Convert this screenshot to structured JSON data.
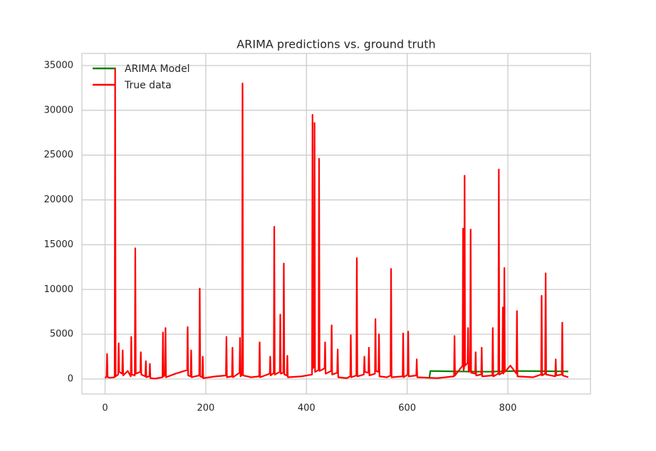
{
  "chart_data": {
    "type": "line",
    "title": "ARIMA predictions vs. ground truth",
    "xlim": [
      -46,
      964
    ],
    "ylim": [
      -1670,
      36350
    ],
    "xticks": [
      0,
      200,
      400,
      600,
      800
    ],
    "yticks": [
      0,
      5000,
      10000,
      15000,
      20000,
      25000,
      30000,
      35000
    ],
    "grid": true,
    "legend": "upper-left",
    "series": [
      {
        "name": "ARIMA Model",
        "color": "#008000",
        "x": [
          644,
          646,
          700,
          760,
          820,
          920
        ],
        "values": [
          100,
          900,
          850,
          820,
          900,
          850
        ]
      },
      {
        "name": "True data",
        "color": "#ff0000",
        "x": [
          0,
          3,
          4,
          5,
          10,
          19,
          20,
          21,
          26,
          27,
          28,
          34,
          35,
          36,
          45,
          51,
          52,
          53,
          59,
          60,
          61,
          70,
          71,
          72,
          80,
          81,
          82,
          88,
          89,
          90,
          100,
          114,
          115,
          116,
          119,
          120,
          121,
          140,
          163,
          164,
          165,
          170,
          171,
          172,
          187,
          188,
          189,
          193,
          194,
          195,
          220,
          240,
          241,
          242,
          252,
          253,
          254,
          267,
          268,
          269,
          272,
          273,
          274,
          290,
          306,
          307,
          308,
          327,
          328,
          329,
          335,
          336,
          337,
          347,
          348,
          349,
          354,
          355,
          356,
          361,
          362,
          363,
          390,
          411,
          412,
          413,
          415,
          416,
          417,
          424,
          425,
          426,
          436,
          437,
          438,
          449,
          450,
          451,
          461,
          462,
          463,
          480,
          487,
          488,
          489,
          499,
          500,
          501,
          514,
          515,
          516,
          523,
          524,
          525,
          536,
          537,
          538,
          543,
          544,
          545,
          560,
          567,
          568,
          569,
          591,
          592,
          593,
          601,
          602,
          603,
          618,
          619,
          620,
          660,
          693,
          694,
          695,
          710,
          711,
          712,
          713,
          714,
          715,
          720,
          721,
          722,
          725,
          726,
          727,
          735,
          736,
          737,
          747,
          748,
          749,
          769,
          770,
          771,
          781,
          782,
          783,
          789,
          790,
          791,
          792,
          793,
          794,
          805,
          817,
          818,
          819,
          850,
          866,
          867,
          868,
          874,
          875,
          876,
          894,
          895,
          896,
          907,
          908,
          909,
          920
        ],
        "values": [
          100,
          300,
          2800,
          200,
          150,
          200,
          34700,
          300,
          500,
          4000,
          800,
          600,
          3200,
          400,
          900,
          300,
          4700,
          500,
          400,
          14600,
          600,
          800,
          3000,
          500,
          300,
          2000,
          200,
          300,
          1700,
          100,
          50,
          200,
          5200,
          300,
          400,
          5700,
          200,
          600,
          1000,
          5800,
          400,
          300,
          3200,
          200,
          400,
          10100,
          300,
          200,
          2500,
          100,
          300,
          400,
          4700,
          200,
          300,
          3500,
          200,
          700,
          4600,
          300,
          500,
          33000,
          400,
          200,
          300,
          4100,
          200,
          600,
          2500,
          400,
          700,
          17000,
          500,
          800,
          7200,
          600,
          700,
          12900,
          500,
          400,
          2600,
          200,
          300,
          500,
          29500,
          1200,
          1500,
          28600,
          800,
          1000,
          24600,
          900,
          1200,
          4100,
          600,
          900,
          6000,
          500,
          700,
          3300,
          200,
          100,
          300,
          4900,
          200,
          400,
          13500,
          300,
          500,
          2500,
          800,
          700,
          3500,
          400,
          600,
          6700,
          900,
          800,
          5000,
          300,
          200,
          400,
          12300,
          200,
          300,
          5100,
          200,
          500,
          5300,
          300,
          400,
          2200,
          200,
          100,
          300,
          4800,
          400,
          1500,
          16800,
          1000,
          1200,
          22700,
          1500,
          1800,
          5700,
          800,
          900,
          16700,
          700,
          600,
          3000,
          400,
          500,
          3500,
          300,
          400,
          5700,
          300,
          600,
          23400,
          500,
          700,
          8000,
          600,
          900,
          12400,
          800,
          1500,
          600,
          7600,
          300,
          200,
          500,
          9300,
          400,
          600,
          11800,
          500,
          300,
          2200,
          400,
          500,
          6300,
          400,
          200
        ]
      }
    ]
  }
}
